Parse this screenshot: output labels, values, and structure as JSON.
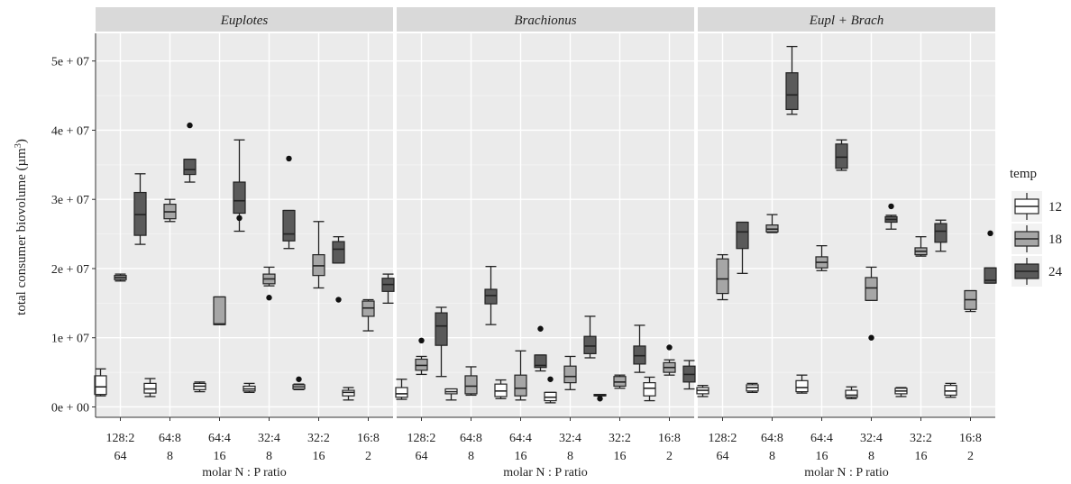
{
  "chart_data": {
    "type": "box",
    "ylabel": "total consumer biovolume (µm³)",
    "ylabel_main": "total consumer biovolume (µm",
    "ylabel_sup": "3",
    "ylabel_tail": ")",
    "xlabel": "molar N : P ratio",
    "ylim": [
      -1500000,
      54000000
    ],
    "yticks": [
      {
        "value": 0,
        "label": "0e + 00"
      },
      {
        "value": 10000000,
        "label": "1e + 07"
      },
      {
        "value": 20000000,
        "label": "2e + 07"
      },
      {
        "value": 30000000,
        "label": "3e + 07"
      },
      {
        "value": 40000000,
        "label": "4e + 07"
      },
      {
        "value": 50000000,
        "label": "5e + 07"
      }
    ],
    "categories": [
      {
        "top": "128:2",
        "bottom": "64"
      },
      {
        "top": "64:8",
        "bottom": "8"
      },
      {
        "top": "64:4",
        "bottom": "16"
      },
      {
        "top": "32:4",
        "bottom": "8"
      },
      {
        "top": "32:2",
        "bottom": "16"
      },
      {
        "top": "16:8",
        "bottom": "2"
      }
    ],
    "legend": {
      "title": "temp",
      "position": "right",
      "entries": [
        {
          "label": "12",
          "color": "#ffffff"
        },
        {
          "label": "18",
          "color": "#a6a6a6"
        },
        {
          "label": "24",
          "color": "#5a5a5a"
        }
      ]
    },
    "panels": [
      {
        "title": "Euplotes",
        "boxes": [
          [
            {
              "min": 1600000,
              "q1": 1800000,
              "median": 2900000,
              "q3": 4500000,
              "max": 5500000,
              "outliers": []
            },
            {
              "min": 18200000,
              "q1": 18400000,
              "median": 18700000,
              "q3": 19000000,
              "max": 19200000,
              "outliers": []
            },
            {
              "min": 23500000,
              "q1": 24800000,
              "median": 27800000,
              "q3": 31000000,
              "max": 33700000,
              "outliers": []
            }
          ],
          [
            {
              "min": 1500000,
              "q1": 2000000,
              "median": 2600000,
              "q3": 3400000,
              "max": 4100000,
              "outliers": []
            },
            {
              "min": 26800000,
              "q1": 27200000,
              "median": 28200000,
              "q3": 29300000,
              "max": 30000000,
              "outliers": []
            },
            {
              "min": 32500000,
              "q1": 33600000,
              "median": 34300000,
              "q3": 35800000,
              "max": 35800000,
              "outliers": [
                40700000
              ]
            }
          ],
          [
            {
              "min": 2200000,
              "q1": 2500000,
              "median": 3000000,
              "q3": 3400000,
              "max": 3600000,
              "outliers": []
            },
            {
              "min": 11900000,
              "q1": 11900000,
              "median": 12000000,
              "q3": 15900000,
              "max": 15900000,
              "outliers": []
            },
            {
              "min": 25400000,
              "q1": 28000000,
              "median": 29800000,
              "q3": 32500000,
              "max": 38600000,
              "outliers": [
                27300000
              ]
            }
          ],
          [
            {
              "min": 2100000,
              "q1": 2300000,
              "median": 2600000,
              "q3": 3000000,
              "max": 3400000,
              "outliers": []
            },
            {
              "min": 17500000,
              "q1": 17800000,
              "median": 18500000,
              "q3": 19200000,
              "max": 20200000,
              "outliers": [
                15800000
              ]
            },
            {
              "min": 22900000,
              "q1": 24000000,
              "median": 25000000,
              "q3": 28400000,
              "max": 28400000,
              "outliers": [
                35900000
              ]
            }
          ],
          [
            {
              "min": 2500000,
              "q1": 2600000,
              "median": 2900000,
              "q3": 3200000,
              "max": 3300000,
              "outliers": [
                4000000
              ]
            },
            {
              "min": 17200000,
              "q1": 19000000,
              "median": 20400000,
              "q3": 22000000,
              "max": 26800000,
              "outliers": []
            },
            {
              "min": 20800000,
              "q1": 20800000,
              "median": 22800000,
              "q3": 23900000,
              "max": 24600000,
              "outliers": [
                15500000
              ]
            }
          ],
          [
            {
              "min": 1000000,
              "q1": 1600000,
              "median": 2100000,
              "q3": 2400000,
              "max": 2800000,
              "outliers": []
            },
            {
              "min": 11000000,
              "q1": 13100000,
              "median": 14300000,
              "q3": 15300000,
              "max": 15500000,
              "outliers": []
            },
            {
              "min": 15000000,
              "q1": 16700000,
              "median": 17700000,
              "q3": 18600000,
              "max": 19200000,
              "outliers": []
            }
          ]
        ]
      },
      {
        "title": "Brachionus",
        "boxes": [
          [
            {
              "min": 1100000,
              "q1": 1400000,
              "median": 1900000,
              "q3": 2800000,
              "max": 4000000,
              "outliers": []
            },
            {
              "min": 4700000,
              "q1": 5300000,
              "median": 6000000,
              "q3": 6900000,
              "max": 7300000,
              "outliers": [
                9600000
              ]
            },
            {
              "min": 4400000,
              "q1": 8900000,
              "median": 11700000,
              "q3": 13600000,
              "max": 14400000,
              "outliers": []
            }
          ],
          [
            {
              "min": 1000000,
              "q1": 1900000,
              "median": 2200000,
              "q3": 2600000,
              "max": 2600000,
              "outliers": []
            },
            {
              "min": 1700000,
              "q1": 1900000,
              "median": 3000000,
              "q3": 4500000,
              "max": 5800000,
              "outliers": []
            },
            {
              "min": 11900000,
              "q1": 14900000,
              "median": 16100000,
              "q3": 17000000,
              "max": 20300000,
              "outliers": []
            }
          ],
          [
            {
              "min": 1200000,
              "q1": 1500000,
              "median": 2300000,
              "q3": 3300000,
              "max": 3900000,
              "outliers": []
            },
            {
              "min": 1000000,
              "q1": 1600000,
              "median": 2700000,
              "q3": 4600000,
              "max": 8100000,
              "outliers": []
            },
            {
              "min": 5200000,
              "q1": 5700000,
              "median": 6000000,
              "q3": 7500000,
              "max": 7500000,
              "outliers": [
                11300000
              ]
            }
          ],
          [
            {
              "min": 600000,
              "q1": 900000,
              "median": 1400000,
              "q3": 2100000,
              "max": 2100000,
              "outliers": [
                4000000
              ]
            },
            {
              "min": 2500000,
              "q1": 3500000,
              "median": 4400000,
              "q3": 5900000,
              "max": 7300000,
              "outliers": []
            },
            {
              "min": 7100000,
              "q1": 7700000,
              "median": 8800000,
              "q3": 10200000,
              "max": 13100000,
              "outliers": []
            }
          ],
          [
            {
              "min": 1600000,
              "q1": 1600000,
              "median": 1700000,
              "q3": 1800000,
              "max": 1800000,
              "outliers": [
                1200000
              ]
            },
            {
              "min": 2700000,
              "q1": 3000000,
              "median": 3600000,
              "q3": 4400000,
              "max": 4600000,
              "outliers": []
            },
            {
              "min": 5000000,
              "q1": 6200000,
              "median": 7400000,
              "q3": 8800000,
              "max": 11800000,
              "outliers": []
            }
          ],
          [
            {
              "min": 900000,
              "q1": 1600000,
              "median": 2700000,
              "q3": 3500000,
              "max": 4300000,
              "outliers": []
            },
            {
              "min": 4600000,
              "q1": 5000000,
              "median": 5700000,
              "q3": 6400000,
              "max": 6800000,
              "outliers": [
                8600000
              ]
            },
            {
              "min": 2600000,
              "q1": 3600000,
              "median": 4700000,
              "q3": 5900000,
              "max": 6700000,
              "outliers": []
            }
          ]
        ]
      },
      {
        "title": "Eupl + Brach",
        "boxes": [
          [
            {
              "min": 1500000,
              "q1": 1900000,
              "median": 2400000,
              "q3": 2800000,
              "max": 3100000,
              "outliers": []
            },
            {
              "min": 15500000,
              "q1": 16400000,
              "median": 18500000,
              "q3": 21400000,
              "max": 22000000,
              "outliers": []
            },
            {
              "min": 19300000,
              "q1": 22900000,
              "median": 25300000,
              "q3": 26700000,
              "max": 26700000,
              "outliers": []
            }
          ],
          [
            {
              "min": 2100000,
              "q1": 2300000,
              "median": 2800000,
              "q3": 3200000,
              "max": 3400000,
              "outliers": []
            },
            {
              "min": 25200000,
              "q1": 25300000,
              "median": 25700000,
              "q3": 26300000,
              "max": 27800000,
              "outliers": []
            },
            {
              "min": 42300000,
              "q1": 43000000,
              "median": 45100000,
              "q3": 48300000,
              "max": 52100000,
              "outliers": []
            }
          ],
          [
            {
              "min": 2000000,
              "q1": 2200000,
              "median": 2800000,
              "q3": 3800000,
              "max": 4600000,
              "outliers": []
            },
            {
              "min": 19700000,
              "q1": 20100000,
              "median": 20900000,
              "q3": 21700000,
              "max": 23300000,
              "outliers": []
            },
            {
              "min": 34200000,
              "q1": 34500000,
              "median": 36100000,
              "q3": 38000000,
              "max": 38600000,
              "outliers": []
            }
          ],
          [
            {
              "min": 1200000,
              "q1": 1400000,
              "median": 1700000,
              "q3": 2400000,
              "max": 2900000,
              "outliers": []
            },
            {
              "min": 15400000,
              "q1": 15400000,
              "median": 17200000,
              "q3": 18700000,
              "max": 20200000,
              "outliers": [
                10000000
              ]
            },
            {
              "min": 25700000,
              "q1": 26700000,
              "median": 27100000,
              "q3": 27500000,
              "max": 27700000,
              "outliers": [
                29000000
              ]
            }
          ],
          [
            {
              "min": 1500000,
              "q1": 1900000,
              "median": 2300000,
              "q3": 2700000,
              "max": 2800000,
              "outliers": []
            },
            {
              "min": 21800000,
              "q1": 22000000,
              "median": 22500000,
              "q3": 23000000,
              "max": 24600000,
              "outliers": []
            },
            {
              "min": 22500000,
              "q1": 23800000,
              "median": 25400000,
              "q3": 26500000,
              "max": 27000000,
              "outliers": []
            }
          ],
          [
            {
              "min": 1400000,
              "q1": 1700000,
              "median": 2300000,
              "q3": 3100000,
              "max": 3400000,
              "outliers": []
            },
            {
              "min": 13800000,
              "q1": 14100000,
              "median": 15500000,
              "q3": 16800000,
              "max": 16800000,
              "outliers": []
            },
            {
              "min": 17900000,
              "q1": 17900000,
              "median": 18300000,
              "q3": 20100000,
              "max": 20100000,
              "outliers": [
                25100000
              ]
            }
          ]
        ]
      }
    ]
  }
}
